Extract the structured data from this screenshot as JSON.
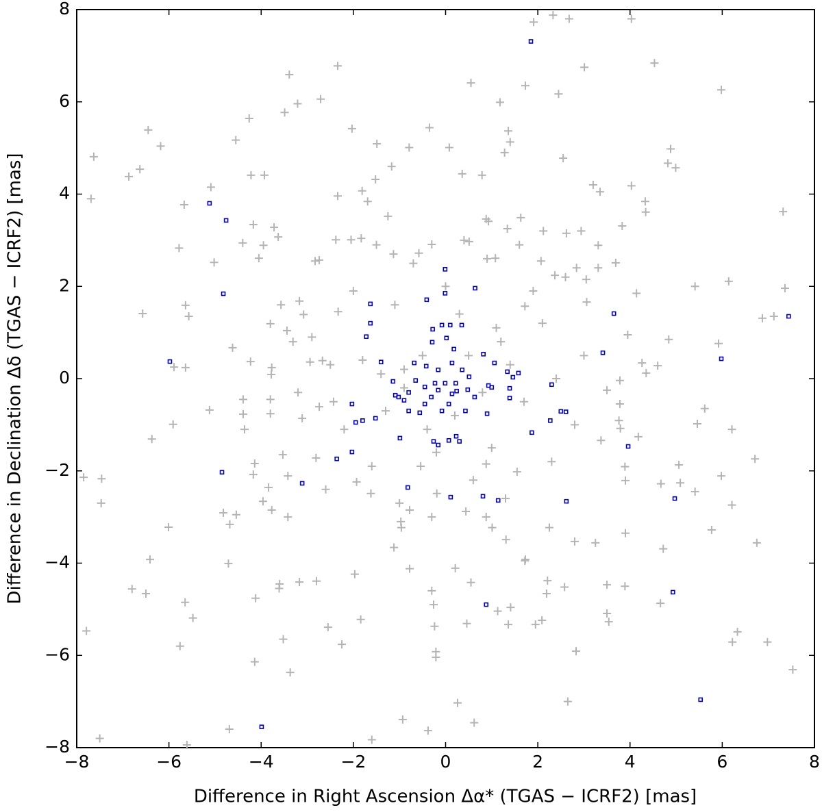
{
  "chart_data": {
    "type": "scatter",
    "xlabel": "Difference in Right Ascension Δα* (TGAS − ICRF2) [mas]",
    "ylabel": "Difference in Declination Δδ (TGAS − ICRF2) [mas]",
    "xlim": [
      -8,
      8
    ],
    "ylim": [
      -8,
      8
    ],
    "xticks": [
      {
        "value": -8,
        "label": "−8"
      },
      {
        "value": -6,
        "label": "−6"
      },
      {
        "value": -4,
        "label": "−4"
      },
      {
        "value": -2,
        "label": "−2"
      },
      0,
      2,
      4,
      6,
      8
    ],
    "yticks": [
      {
        "value": -8,
        "label": "−8"
      },
      {
        "value": -6,
        "label": "−6"
      },
      {
        "value": -4,
        "label": "−4"
      },
      {
        "value": -2,
        "label": "−2"
      },
      0,
      2,
      4,
      6,
      8
    ],
    "grid": false,
    "series": [
      {
        "color": "#b4b4b4",
        "marker": "plus",
        "x": [
          1.91,
          2.33,
          2.68,
          4.03,
          -2.34,
          -3.39,
          3.01,
          4.53,
          5.98,
          0.55,
          1.73,
          2.45,
          1.18,
          -2.71,
          -3.21,
          -3.49,
          -4.26,
          -2.03,
          -6.45,
          -4.55,
          -6.18,
          -1.49,
          -0.35,
          1.36,
          1.4,
          1.28,
          4.88,
          4.82,
          4.99,
          -7.63,
          -6.63,
          -6.87,
          -4.22,
          -3.93,
          -1.52,
          -1.17,
          -0.79,
          0.08,
          0.36,
          0.79,
          2.55,
          3.2,
          4.03,
          3.35,
          -7.69,
          -5.67,
          -5.09,
          -2.34,
          -1.81,
          -1.69,
          4.33,
          4.34,
          7.32,
          -1.25,
          0.88,
          0.93,
          1.34,
          1.63,
          2.12,
          2.62,
          2.94,
          3.83,
          -3.72,
          -4.17,
          -3.63,
          -4.4,
          -3.95,
          -5.78,
          -4.05,
          -5.02,
          -2.83,
          -2.74,
          -2.38,
          -2.05,
          -1.83,
          -1.13,
          -0.58,
          -0.3,
          0.51,
          1.08,
          2.07,
          3.31,
          3.69,
          3.31,
          2.84,
          2.37,
          3.05,
          6.14,
          7.36,
          5.41,
          4.14,
          3.06,
          1.72,
          -3.57,
          -5.64,
          -5.57,
          -6.57,
          -3.17,
          -3.08,
          -2.33,
          6.87,
          7.12,
          4.84,
          5.92,
          3.95,
          -3.8,
          -3.44,
          -3.31,
          -4.62,
          -5.89,
          -5.64,
          -4.23,
          -3.77,
          -3.78,
          -2.94,
          -2.67,
          4.26,
          4.6,
          4.35,
          3.78,
          3.5,
          3.78,
          3.76,
          3.79,
          6.21,
          4.18,
          3.37,
          5.62,
          5.46,
          -5.91,
          -5.12,
          -6.37,
          -4.39,
          -4.39,
          -3.8,
          -3.8,
          -3.11,
          -2.74,
          -2.43,
          -4.36,
          -3.53,
          -4.14,
          -4.17,
          -3.84,
          -3.42,
          -2.81,
          -1.93,
          -1.62,
          6.71,
          5.98,
          5.06,
          3.89,
          3.9,
          4.67,
          5.09,
          5.41,
          6.21,
          -7.46,
          -7.85,
          -7.47,
          -6.01,
          -4.82,
          -4.68,
          -4.54,
          -3.96,
          -3.77,
          -3.42,
          -4.71,
          -6.41,
          -6.8,
          -6.5,
          -5.65,
          -5.48,
          -5.76,
          -4.12,
          -3.6,
          -3.61,
          -3.17,
          -2.8,
          -2.55,
          -2.25,
          -1.97,
          -1.84,
          -4.14,
          -3.52,
          -3.37,
          -7.79,
          -7.5,
          -5.61,
          -4.69,
          -1.6,
          -0.93,
          -0.38,
          0.62,
          0.26,
          -0.21,
          -0.21,
          -0.24,
          -0.26,
          -0.3,
          -0.78,
          -1.12,
          0.21,
          0.55,
          0.46,
          1.13,
          1.41,
          1.36,
          1.95,
          2.09,
          2.21,
          2.19,
          2.58,
          2.65,
          2.83,
          3.5,
          3.54,
          3.5,
          3.89,
          4.66,
          6.22,
          6.33,
          6.98,
          7.53,
          6.75,
          5.77,
          4.72,
          3.9,
          3.25,
          2.8,
          2.25,
          1.72,
          1.73,
          1.31,
          1.01,
          0.88,
          0.44,
          -0.96,
          -0.97,
          -0.78,
          -0.19,
          -0.54,
          0.88,
          1.55,
          0.5,
          -0.5,
          0.8,
          -0.9,
          1.2,
          -1.3,
          0.3,
          -0.2,
          1.7,
          -1.8,
          2.1,
          -2.2,
          1.0,
          -1.1,
          0.0,
          2.4,
          -2.5,
          0.6,
          1.9,
          -1.6,
          2.8,
          -2.9,
          0.9,
          -0.7,
          1.4,
          -1.4,
          0.2,
          -0.4,
          1.1,
          -0.9,
          2.3,
          -2.0,
          3.0,
          -3.2,
          0.4,
          -0.3,
          1.6,
          -1.5,
          2.6,
          -2.6,
          1.3,
          -1.0
        ],
        "values": [
          7.73,
          7.88,
          7.8,
          7.8,
          6.78,
          6.59,
          6.75,
          6.84,
          6.26,
          6.41,
          6.35,
          6.17,
          5.99,
          6.06,
          5.96,
          5.77,
          5.64,
          5.42,
          5.39,
          5.17,
          5.04,
          5.09,
          5.44,
          5.37,
          5.13,
          4.9,
          4.98,
          4.67,
          4.57,
          4.81,
          4.54,
          4.38,
          4.41,
          4.41,
          4.32,
          4.6,
          5.01,
          5.01,
          4.44,
          4.41,
          4.78,
          4.2,
          4.18,
          4.05,
          3.9,
          3.77,
          4.15,
          3.96,
          4.07,
          3.84,
          3.84,
          3.61,
          3.62,
          3.52,
          3.46,
          3.41,
          3.25,
          3.49,
          3.2,
          3.15,
          3.2,
          3.31,
          3.28,
          3.34,
          3.07,
          2.94,
          2.89,
          2.83,
          2.61,
          2.52,
          2.55,
          2.57,
          3.01,
          3.01,
          3.04,
          2.7,
          2.72,
          2.91,
          2.97,
          2.61,
          2.55,
          2.89,
          2.51,
          2.4,
          2.4,
          2.24,
          2.15,
          2.11,
          1.96,
          2.0,
          1.85,
          1.66,
          1.57,
          1.6,
          1.59,
          1.35,
          1.41,
          1.68,
          1.39,
          1.45,
          1.31,
          1.35,
          0.85,
          0.76,
          0.95,
          1.19,
          1.04,
          0.8,
          0.67,
          0.25,
          0.24,
          0.37,
          0.24,
          0.09,
          0.36,
          0.39,
          0.34,
          0.28,
          0.12,
          -0.04,
          -0.25,
          -0.55,
          -0.91,
          -1.08,
          -1.1,
          -1.26,
          -1.34,
          -0.65,
          -0.98,
          -0.99,
          -0.68,
          -1.31,
          -0.45,
          -0.77,
          -0.76,
          -0.45,
          -0.86,
          -0.61,
          -0.5,
          -1.1,
          -1.65,
          -1.84,
          -2.08,
          -2.36,
          -2.11,
          -1.72,
          -2.24,
          -2.49,
          -1.74,
          -2.11,
          -1.87,
          -1.91,
          -2.21,
          -2.28,
          -2.26,
          -2.45,
          -2.74,
          -2.17,
          -2.14,
          -2.7,
          -3.22,
          -2.91,
          -3.16,
          -2.95,
          -2.66,
          -2.85,
          -3.0,
          -4.01,
          -3.92,
          -4.56,
          -4.66,
          -4.85,
          -5.19,
          -5.8,
          -4.76,
          -4.45,
          -4.55,
          -4.41,
          -4.39,
          -5.39,
          -5.76,
          -4.24,
          -5.22,
          -6.14,
          -5.65,
          -6.37,
          -5.47,
          -7.8,
          -7.94,
          -7.6,
          -7.83,
          -7.39,
          -7.63,
          -7.46,
          -7.03,
          -6.04,
          -5.92,
          -5.37,
          -4.9,
          -4.6,
          -4.12,
          -3.66,
          -4.11,
          -4.42,
          -5.31,
          -5.04,
          -4.96,
          -5.33,
          -5.33,
          -5.24,
          -4.38,
          -4.66,
          -4.52,
          -7.0,
          -5.91,
          -5.09,
          -5.27,
          -4.47,
          -4.5,
          -4.87,
          -5.71,
          -5.49,
          -5.71,
          -6.31,
          -3.56,
          -3.28,
          -3.69,
          -3.35,
          -3.56,
          -3.53,
          -3.23,
          -3.95,
          -3.92,
          -3.49,
          -3.23,
          -3.0,
          -2.88,
          -3.23,
          -3.1,
          -2.85,
          -2.49,
          -1.9,
          -1.85,
          -2.02,
          0.5,
          0.5,
          -0.3,
          0.2,
          0.8,
          -0.7,
          1.4,
          -1.6,
          -0.5,
          0.4,
          1.2,
          -1.1,
          -1.5,
          1.6,
          2.0,
          0.0,
          0.3,
          -2.2,
          1.9,
          -1.9,
          -1.0,
          0.9,
          2.6,
          2.5,
          0.3,
          0.1,
          -0.8,
          -1.1,
          1.1,
          -0.2,
          -1.8,
          1.9,
          0.5,
          -0.3,
          3.0,
          -3.0,
          2.9,
          2.9,
          2.2,
          -2.4,
          -2.6,
          -2.7
        ]
      },
      {
        "color": "#0000cc",
        "marker": "square",
        "x": [
          1.85,
          -5.12,
          -4.76,
          -4.82,
          -5.98,
          -4.85,
          -3.11,
          -3.99,
          7.44,
          5.98,
          3.65,
          3.41,
          3.96,
          4.97,
          4.93,
          5.53,
          2.62,
          0.88,
          1.14,
          0.81,
          0.11,
          -0.82,
          -2.36,
          -2.03,
          -2.03,
          -1.95,
          -1.8,
          -1.52,
          -0.99,
          -1.63,
          -1.63,
          -1.72,
          -1.4,
          -1.14,
          -1.09,
          -1.02,
          -0.41,
          -0.01,
          -0.01,
          0.64,
          -0.28,
          -0.08,
          0.1,
          0.35,
          0.02,
          0.18,
          -0.29,
          0.82,
          1.06,
          1.34,
          1.58,
          1.46,
          1.39,
          1.0,
          0.93,
          1.39,
          2.3,
          1.87,
          2.27,
          2.5,
          2.61,
          0.9,
          0.63,
          0.48,
          0.24,
          -0.16,
          -0.26,
          0.23,
          0.3,
          0.07,
          -0.56,
          -0.8,
          -0.8,
          -0.65,
          -0.68,
          -0.42,
          -0.16,
          0.14,
          0.36,
          0.51,
          -0.01,
          -0.16,
          0.14,
          -0.31,
          -0.45,
          0.43,
          -0.08,
          0.07,
          0.22,
          -0.23,
          -0.45,
          -0.9
        ],
        "values": [
          7.31,
          3.8,
          3.43,
          1.84,
          0.37,
          -2.03,
          -2.27,
          -7.55,
          1.35,
          0.43,
          1.41,
          0.56,
          -1.47,
          -2.6,
          -4.63,
          -6.96,
          -2.66,
          -4.9,
          -2.64,
          -2.55,
          -2.57,
          -2.36,
          -1.74,
          -1.59,
          -0.55,
          -0.95,
          -0.91,
          -0.86,
          -1.29,
          1.62,
          1.2,
          0.91,
          0.36,
          -0.06,
          -0.36,
          -0.4,
          1.71,
          2.37,
          1.85,
          1.96,
          1.07,
          1.16,
          1.16,
          1.16,
          0.88,
          0.64,
          0.79,
          0.53,
          0.34,
          0.15,
          0.12,
          0.03,
          -0.21,
          -0.19,
          -0.15,
          -0.42,
          -0.13,
          -1.17,
          -0.91,
          -0.71,
          -0.72,
          -0.76,
          -0.4,
          -0.24,
          -0.27,
          -1.44,
          -1.36,
          -1.25,
          -1.36,
          -1.34,
          -0.74,
          -0.7,
          -0.3,
          -0.04,
          0.34,
          0.27,
          0.19,
          0.34,
          0.19,
          0.04,
          -0.1,
          -0.25,
          -0.33,
          -0.4,
          -0.55,
          -0.7,
          -0.7,
          -0.55,
          -0.1,
          -0.1,
          -0.18,
          -0.47
        ]
      }
    ]
  }
}
